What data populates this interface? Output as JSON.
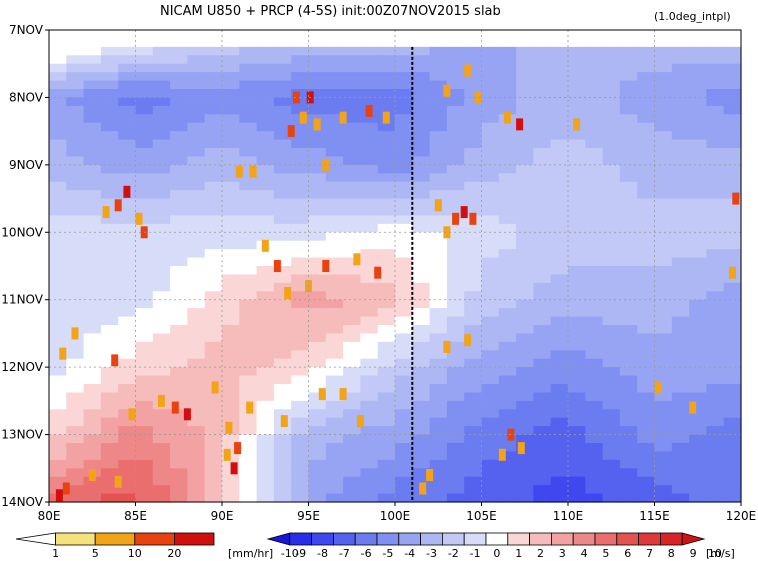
{
  "chart_data": {
    "type": "heatmap",
    "title": "NICAM   U850  +  PRCP  (4-5S)  init:00Z07NOV2015  slab",
    "subtitle": "(1.0deg_intpl)",
    "x_ticks": [
      "80E",
      "85E",
      "90E",
      "95E",
      "100E",
      "105E",
      "110E",
      "115E",
      "120E"
    ],
    "x_tick_values": [
      80,
      85,
      90,
      95,
      100,
      105,
      110,
      115,
      120
    ],
    "xlim": [
      80,
      120
    ],
    "y_ticks": [
      "7NOV",
      "8NOV",
      "9NOV",
      "10NOV",
      "11NOV",
      "12NOV",
      "13NOV",
      "14NOV"
    ],
    "y_tick_values": [
      7,
      8,
      9,
      10,
      11,
      12,
      13,
      14
    ],
    "ylim": [
      7,
      14
    ],
    "y_reversed": true,
    "grid": true,
    "marker_line_lon": 101,
    "u850_field": {
      "lons": [
        80,
        85,
        90,
        95,
        100,
        105,
        110,
        115,
        120
      ],
      "days": [
        7.25,
        8,
        9,
        10,
        11,
        12,
        13,
        14
      ],
      "values_m_per_s": [
        [
          1,
          -1,
          -2,
          -3,
          -3,
          -4,
          -3,
          -3,
          -3
        ],
        [
          -4,
          -6,
          -5,
          -6,
          -6,
          -4,
          -3,
          -4,
          -5
        ],
        [
          -3,
          -4,
          -3,
          -4,
          -5,
          -3,
          -2,
          -3,
          -3
        ],
        [
          -1,
          -1,
          -1,
          -1,
          0,
          -1,
          -2,
          -2,
          -2
        ],
        [
          -1,
          -1,
          1,
          3,
          2,
          -2,
          -3,
          -3,
          -4
        ],
        [
          -1,
          1,
          2,
          1,
          -2,
          -4,
          -5,
          -4,
          -4
        ],
        [
          1,
          4,
          2,
          -3,
          -4,
          -6,
          -7,
          -5,
          -6
        ],
        [
          5,
          6,
          2,
          -4,
          -6,
          -7,
          -8,
          -7,
          -6
        ]
      ]
    },
    "precip_cells": [
      {
        "lon": 94.3,
        "day": 8.0,
        "mm_hr": 10
      },
      {
        "lon": 95.1,
        "day": 8.0,
        "mm_hr": 20
      },
      {
        "lon": 94.7,
        "day": 8.3,
        "mm_hr": 5
      },
      {
        "lon": 94.0,
        "day": 8.5,
        "mm_hr": 10
      },
      {
        "lon": 95.5,
        "day": 8.4,
        "mm_hr": 5
      },
      {
        "lon": 97.0,
        "day": 8.3,
        "mm_hr": 5
      },
      {
        "lon": 98.5,
        "day": 8.2,
        "mm_hr": 10
      },
      {
        "lon": 99.5,
        "day": 8.3,
        "mm_hr": 5
      },
      {
        "lon": 103.0,
        "day": 7.9,
        "mm_hr": 5
      },
      {
        "lon": 104.2,
        "day": 7.6,
        "mm_hr": 5
      },
      {
        "lon": 104.8,
        "day": 8.0,
        "mm_hr": 5
      },
      {
        "lon": 106.5,
        "day": 8.3,
        "mm_hr": 5
      },
      {
        "lon": 107.2,
        "day": 8.4,
        "mm_hr": 20
      },
      {
        "lon": 110.5,
        "day": 8.4,
        "mm_hr": 5
      },
      {
        "lon": 84.0,
        "day": 9.6,
        "mm_hr": 10
      },
      {
        "lon": 84.5,
        "day": 9.4,
        "mm_hr": 20
      },
      {
        "lon": 83.3,
        "day": 9.7,
        "mm_hr": 5
      },
      {
        "lon": 85.2,
        "day": 9.8,
        "mm_hr": 5
      },
      {
        "lon": 85.5,
        "day": 10.0,
        "mm_hr": 10
      },
      {
        "lon": 91.0,
        "day": 9.1,
        "mm_hr": 5
      },
      {
        "lon": 91.8,
        "day": 9.1,
        "mm_hr": 5
      },
      {
        "lon": 96.0,
        "day": 9.0,
        "mm_hr": 5
      },
      {
        "lon": 102.5,
        "day": 9.6,
        "mm_hr": 5
      },
      {
        "lon": 103.5,
        "day": 9.8,
        "mm_hr": 10
      },
      {
        "lon": 104.0,
        "day": 9.7,
        "mm_hr": 20
      },
      {
        "lon": 104.5,
        "day": 9.8,
        "mm_hr": 10
      },
      {
        "lon": 103.0,
        "day": 10.0,
        "mm_hr": 5
      },
      {
        "lon": 119.7,
        "day": 9.5,
        "mm_hr": 10
      },
      {
        "lon": 92.5,
        "day": 10.2,
        "mm_hr": 5
      },
      {
        "lon": 93.2,
        "day": 10.5,
        "mm_hr": 10
      },
      {
        "lon": 96.0,
        "day": 10.5,
        "mm_hr": 10
      },
      {
        "lon": 97.8,
        "day": 10.4,
        "mm_hr": 5
      },
      {
        "lon": 99.0,
        "day": 10.6,
        "mm_hr": 10
      },
      {
        "lon": 93.8,
        "day": 10.9,
        "mm_hr": 5
      },
      {
        "lon": 95.0,
        "day": 10.8,
        "mm_hr": 5
      },
      {
        "lon": 119.5,
        "day": 10.6,
        "mm_hr": 5
      },
      {
        "lon": 80.8,
        "day": 11.8,
        "mm_hr": 5
      },
      {
        "lon": 81.5,
        "day": 11.5,
        "mm_hr": 5
      },
      {
        "lon": 83.8,
        "day": 11.9,
        "mm_hr": 10
      },
      {
        "lon": 103.0,
        "day": 11.7,
        "mm_hr": 5
      },
      {
        "lon": 104.2,
        "day": 11.6,
        "mm_hr": 5
      },
      {
        "lon": 84.8,
        "day": 12.7,
        "mm_hr": 5
      },
      {
        "lon": 86.5,
        "day": 12.5,
        "mm_hr": 5
      },
      {
        "lon": 87.3,
        "day": 12.6,
        "mm_hr": 10
      },
      {
        "lon": 88.0,
        "day": 12.7,
        "mm_hr": 20
      },
      {
        "lon": 89.6,
        "day": 12.3,
        "mm_hr": 5
      },
      {
        "lon": 90.4,
        "day": 12.9,
        "mm_hr": 5
      },
      {
        "lon": 90.9,
        "day": 13.2,
        "mm_hr": 10
      },
      {
        "lon": 91.6,
        "day": 12.6,
        "mm_hr": 5
      },
      {
        "lon": 93.6,
        "day": 12.8,
        "mm_hr": 5
      },
      {
        "lon": 95.8,
        "day": 12.4,
        "mm_hr": 5
      },
      {
        "lon": 97.0,
        "day": 12.4,
        "mm_hr": 5
      },
      {
        "lon": 98.0,
        "day": 12.8,
        "mm_hr": 5
      },
      {
        "lon": 115.2,
        "day": 12.3,
        "mm_hr": 5
      },
      {
        "lon": 117.2,
        "day": 12.6,
        "mm_hr": 5
      },
      {
        "lon": 81.0,
        "day": 13.8,
        "mm_hr": 10
      },
      {
        "lon": 80.6,
        "day": 13.9,
        "mm_hr": 20
      },
      {
        "lon": 82.5,
        "day": 13.6,
        "mm_hr": 5
      },
      {
        "lon": 84.0,
        "day": 13.7,
        "mm_hr": 5
      },
      {
        "lon": 90.7,
        "day": 13.5,
        "mm_hr": 20
      },
      {
        "lon": 90.3,
        "day": 13.3,
        "mm_hr": 5
      },
      {
        "lon": 101.6,
        "day": 13.8,
        "mm_hr": 5
      },
      {
        "lon": 102.0,
        "day": 13.6,
        "mm_hr": 5
      },
      {
        "lon": 106.7,
        "day": 13.0,
        "mm_hr": 10
      },
      {
        "lon": 107.3,
        "day": 13.2,
        "mm_hr": 5
      },
      {
        "lon": 106.2,
        "day": 13.3,
        "mm_hr": 5
      }
    ]
  },
  "legend_precip": {
    "labels": [
      "1",
      "5",
      "10",
      "20"
    ],
    "unit": "[mm/hr]",
    "colors": [
      "#ffffff",
      "#f5e27a",
      "#f2a316",
      "#e8420f",
      "#d10f0f"
    ]
  },
  "legend_wind": {
    "labels": [
      "-10",
      "-9",
      "-8",
      "-7",
      "-6",
      "-5",
      "-4",
      "-3",
      "-2",
      "-1",
      "0",
      "1",
      "2",
      "3",
      "4",
      "5",
      "6",
      "7",
      "8",
      "9",
      "10"
    ],
    "unit": "[m/s]",
    "colors": [
      "#1616d6",
      "#2a2ee8",
      "#3f47ee",
      "#5462ef",
      "#6a7cf0",
      "#8090f2",
      "#97a4f3",
      "#adb7f4",
      "#c2c9f6",
      "#d7dcf8",
      "#ffffff",
      "#fbd6d6",
      "#f6bcbc",
      "#f2a2a2",
      "#ee8888",
      "#ea6e6e",
      "#e45252",
      "#de3a3a",
      "#d82424",
      "#cf1212"
    ]
  }
}
